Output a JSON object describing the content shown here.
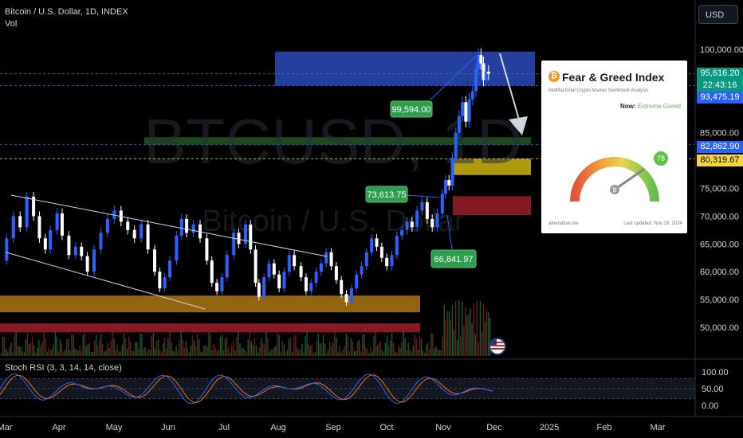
{
  "header": {
    "symbol": "Bitcoin / U.S. Dollar, 1D, INDEX",
    "vol": "Vol"
  },
  "currency_button": "USD",
  "watermark": {
    "main": "BTCUSD, 1D",
    "sub": "Bitcoin / U.S. Dollar"
  },
  "price_tags": [
    {
      "label": "95,616.20",
      "sub": "22:43:16",
      "value": 95616.2,
      "color": "#089981"
    },
    {
      "label": "93,475.19",
      "value": 93475.19,
      "color": "#2962ff"
    },
    {
      "label": "82,862.90",
      "value": 82862.9,
      "color": "#2962ff"
    },
    {
      "label": "80,319.67",
      "value": 80319.67,
      "color": "#f7d83b"
    }
  ],
  "callouts": [
    {
      "label": "99,594.00"
    },
    {
      "label": "73,613.75"
    },
    {
      "label": "66,841.97"
    }
  ],
  "indicator": {
    "label": "Stoch RSI (3, 3, 14, 14, close)"
  },
  "fear_greed": {
    "title": "Fear & Greed Index",
    "subtitle": "Multifactorial Crypto Market Sentiment Analysis",
    "now_label": "Now:",
    "now_value": "Extreme Greed",
    "value": 78,
    "source": "alternative.me",
    "updated": "Last updated: Nov 29, 2024"
  },
  "chart_data": {
    "type": "candlestick",
    "price_axis": {
      "ticks": [
        100000,
        95000,
        90000,
        85000,
        80000,
        75000,
        70000,
        65000,
        60000,
        55000,
        50000
      ],
      "labels": [
        "100,000.00",
        "",
        "",
        "85,000.00",
        "",
        "75,000.00",
        "70,000.00",
        "65,000.00",
        "60,000.00",
        "55,000.00",
        "50,000.00"
      ]
    },
    "time_axis": [
      "Mar",
      "Apr",
      "May",
      "Jun",
      "Jul",
      "Aug",
      "Sep",
      "Oct",
      "Nov",
      "Dec",
      "2025",
      "Feb",
      "Mar"
    ],
    "rsi_axis": {
      "ticks": [
        100,
        50,
        0
      ],
      "labels": [
        "100.00",
        "50.00",
        "0.00"
      ]
    },
    "close_path": [
      [
        0,
        62000
      ],
      [
        6,
        66000
      ],
      [
        14,
        70000
      ],
      [
        22,
        68000
      ],
      [
        30,
        73500
      ],
      [
        38,
        70000
      ],
      [
        45,
        66000
      ],
      [
        52,
        64000
      ],
      [
        58,
        67500
      ],
      [
        66,
        70500
      ],
      [
        72,
        66500
      ],
      [
        80,
        63000
      ],
      [
        88,
        64500
      ],
      [
        95,
        62800
      ],
      [
        102,
        60000
      ],
      [
        110,
        64000
      ],
      [
        118,
        67000
      ],
      [
        126,
        69500
      ],
      [
        134,
        71000
      ],
      [
        142,
        69000
      ],
      [
        150,
        67500
      ],
      [
        158,
        66000
      ],
      [
        166,
        68500
      ],
      [
        174,
        64000
      ],
      [
        182,
        60000
      ],
      [
        188,
        57000
      ],
      [
        194,
        59000
      ],
      [
        200,
        62000
      ],
      [
        208,
        66500
      ],
      [
        214,
        69500
      ],
      [
        220,
        67000
      ],
      [
        228,
        68500
      ],
      [
        236,
        66000
      ],
      [
        244,
        62000
      ],
      [
        250,
        58000
      ],
      [
        256,
        56500
      ],
      [
        262,
        59000
      ],
      [
        268,
        63000
      ],
      [
        276,
        67000
      ],
      [
        282,
        65000
      ],
      [
        290,
        68500
      ],
      [
        296,
        64000
      ],
      [
        302,
        58000
      ],
      [
        306,
        55500
      ],
      [
        312,
        59000
      ],
      [
        318,
        61500
      ],
      [
        324,
        59500
      ],
      [
        330,
        57000
      ],
      [
        336,
        60000
      ],
      [
        342,
        63000
      ],
      [
        348,
        61000
      ],
      [
        356,
        59000
      ],
      [
        362,
        56500
      ],
      [
        368,
        58000
      ],
      [
        374,
        60000
      ],
      [
        380,
        61500
      ],
      [
        386,
        63500
      ],
      [
        392,
        61000
      ],
      [
        398,
        58500
      ],
      [
        404,
        56000
      ],
      [
        410,
        54500
      ],
      [
        416,
        57000
      ],
      [
        422,
        59500
      ],
      [
        428,
        61000
      ],
      [
        434,
        63500
      ],
      [
        440,
        66000
      ],
      [
        446,
        64500
      ],
      [
        452,
        62500
      ],
      [
        458,
        61000
      ],
      [
        464,
        63000
      ],
      [
        470,
        66500
      ],
      [
        476,
        67500
      ],
      [
        482,
        69000
      ],
      [
        488,
        68000
      ],
      [
        494,
        71000
      ],
      [
        500,
        72500
      ],
      [
        506,
        69500
      ],
      [
        512,
        68000
      ],
      [
        518,
        70500
      ],
      [
        524,
        74000
      ],
      [
        528,
        76500
      ],
      [
        532,
        75500
      ],
      [
        536,
        80500
      ],
      [
        540,
        85000
      ],
      [
        544,
        88000
      ],
      [
        548,
        90500
      ],
      [
        552,
        87000
      ],
      [
        556,
        91000
      ],
      [
        560,
        92500
      ],
      [
        564,
        96500
      ],
      [
        567,
        99000
      ],
      [
        570,
        97500
      ],
      [
        573,
        94500
      ],
      [
        576,
        96000
      ],
      [
        579,
        95616
      ]
    ],
    "zones": [
      {
        "from": 93475,
        "to": 99594,
        "color": "#2742a6"
      },
      {
        "from": 82863,
        "to": 84200,
        "color": "#1f4d1f"
      },
      {
        "from": 77400,
        "to": 80319,
        "color": "#b8a10f"
      },
      {
        "from": 70200,
        "to": 73600,
        "color": "#8b1c25"
      },
      {
        "from": 52700,
        "to": 55700,
        "color": "#9c6a12"
      },
      {
        "from": 49100,
        "to": 50700,
        "color": "#8b1c25"
      }
    ]
  }
}
